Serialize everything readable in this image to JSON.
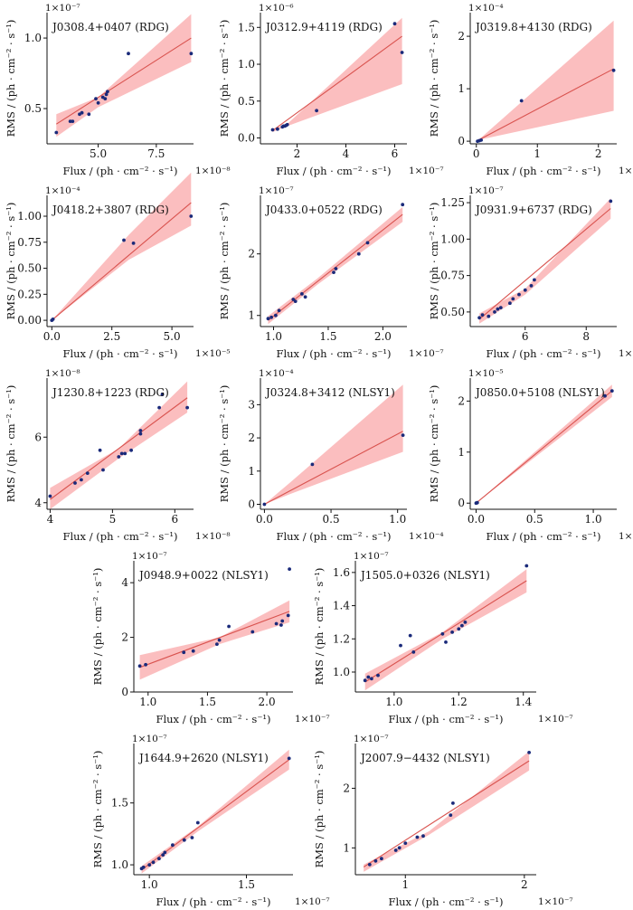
{
  "figure": {
    "y_axis_label": "RMS / (ph · cm⁻² · s⁻¹)",
    "x_axis_label": "Flux / (ph · cm⁻² · s⁻¹)"
  },
  "colors": {
    "points": "#1a2a7a",
    "fit_line": "#d9534f",
    "confidence_band": "#f9a8aa"
  },
  "chart_data": [
    {
      "type": "scatter",
      "title": "J0308.4+0407 (RDG)",
      "x_exponent_label": "1×10⁻⁸",
      "y_exponent_label": "1×10⁻⁷",
      "xlim": [
        2.8,
        9.1
      ],
      "ylim": [
        0.25,
        1.18
      ],
      "xticks": [
        5,
        7.5
      ],
      "xtick_labels": [
        "5.0",
        "7.5"
      ],
      "yticks": [
        0.5,
        1.0
      ],
      "ytick_labels": [
        "0.5",
        "1.0"
      ],
      "x": [
        3.2,
        3.8,
        3.9,
        4.2,
        4.3,
        4.6,
        4.9,
        5.0,
        5.2,
        5.3,
        5.35,
        5.4,
        6.3,
        9.0
      ],
      "y": [
        0.33,
        0.41,
        0.41,
        0.46,
        0.47,
        0.46,
        0.57,
        0.54,
        0.58,
        0.57,
        0.6,
        0.62,
        0.89,
        0.89
      ],
      "fit_line": {
        "x": [
          3.2,
          9.0
        ],
        "y": [
          0.39,
          1.0
        ]
      },
      "band": {
        "x": [
          3.2,
          5.0,
          9.0
        ],
        "upper": [
          0.46,
          0.58,
          1.17
        ],
        "lower": [
          0.3,
          0.51,
          0.83
        ]
      }
    },
    {
      "type": "scatter",
      "title": "J0312.9+4119 (RDG)",
      "x_exponent_label": "1×10⁻⁷",
      "y_exponent_label": "1×10⁻⁶",
      "xlim": [
        0.5,
        6.5
      ],
      "ylim": [
        -0.08,
        1.7
      ],
      "xticks": [
        2,
        4,
        6
      ],
      "xtick_labels": [
        "2",
        "4",
        "6"
      ],
      "yticks": [
        0,
        0.5,
        1.0,
        1.5
      ],
      "ytick_labels": [
        "0.0",
        "0.5",
        "1.0",
        "1.5"
      ],
      "x": [
        1.0,
        1.2,
        1.4,
        1.45,
        1.5,
        1.55,
        1.6,
        2.8,
        6.0,
        6.3
      ],
      "y": [
        0.11,
        0.12,
        0.15,
        0.16,
        0.16,
        0.17,
        0.18,
        0.37,
        1.55,
        1.16
      ],
      "fit_line": {
        "x": [
          1.0,
          6.3
        ],
        "y": [
          0.1,
          1.38
        ]
      },
      "band": {
        "x": [
          1.0,
          1.6,
          6.3
        ],
        "upper": [
          0.12,
          0.19,
          1.63
        ],
        "lower": [
          0.08,
          0.16,
          0.73
        ]
      }
    },
    {
      "type": "scatter",
      "title": "J0319.8+4130 (RDG)",
      "x_exponent_label": "1×10⁻⁵",
      "y_exponent_label": "1×10⁻⁴",
      "xlim": [
        -0.1,
        2.3
      ],
      "ylim": [
        -0.05,
        2.45
      ],
      "xticks": [
        0,
        1,
        2
      ],
      "xtick_labels": [
        "0",
        "1",
        "2"
      ],
      "yticks": [
        0,
        1,
        2
      ],
      "ytick_labels": [
        "0",
        "1",
        "2"
      ],
      "x": [
        0.02,
        0.05,
        0.08,
        0.74,
        2.25
      ],
      "y": [
        0.0,
        0.01,
        0.02,
        0.77,
        1.35
      ],
      "fit_line": {
        "x": [
          0.0,
          2.25
        ],
        "y": [
          0.0,
          1.38
        ]
      },
      "band": {
        "x": [
          0.0,
          0.1,
          2.25
        ],
        "upper": [
          0.0,
          0.09,
          2.3
        ],
        "lower": [
          0.0,
          0.04,
          0.58
        ]
      }
    },
    {
      "type": "scatter",
      "title": "J0418.2+3807 (RDG)",
      "x_exponent_label": "1×10⁻⁵",
      "y_exponent_label": "1×10⁻⁴",
      "xlim": [
        -0.2,
        5.9
      ],
      "ylim": [
        -0.06,
        1.2
      ],
      "xticks": [
        0,
        2.5,
        5
      ],
      "xtick_labels": [
        "0.0",
        "2.5",
        "5.0"
      ],
      "yticks": [
        0,
        0.25,
        0.5,
        0.75,
        1.0
      ],
      "ytick_labels": [
        "0.00",
        "0.25",
        "0.50",
        "0.75",
        "1.00"
      ],
      "x": [
        0.0,
        0.05,
        3.0,
        3.4,
        5.8
      ],
      "y": [
        0.0,
        0.01,
        0.77,
        0.74,
        1.0
      ],
      "fit_line": {
        "x": [
          0.0,
          5.8
        ],
        "y": [
          0.0,
          1.13
        ]
      },
      "band": {
        "x": [
          0.0,
          3.2,
          5.8
        ],
        "upper": [
          0.0,
          0.82,
          1.42
        ],
        "lower": [
          0.0,
          0.58,
          0.91
        ]
      }
    },
    {
      "type": "scatter",
      "title": "J0433.0+0522 (RDG)",
      "x_exponent_label": "1×10⁻⁷",
      "y_exponent_label": "1×10⁻⁷",
      "xlim": [
        0.88,
        2.22
      ],
      "ylim": [
        0.82,
        2.95
      ],
      "xticks": [
        1.0,
        1.5,
        2.0
      ],
      "xtick_labels": [
        "1.0",
        "1.5",
        "2.0"
      ],
      "yticks": [
        1,
        2
      ],
      "ytick_labels": [
        "1",
        "2"
      ],
      "x": [
        0.95,
        0.98,
        1.02,
        1.05,
        1.18,
        1.2,
        1.26,
        1.29,
        1.55,
        1.57,
        1.78,
        1.86,
        2.18
      ],
      "y": [
        0.95,
        0.97,
        1.0,
        1.08,
        1.26,
        1.23,
        1.35,
        1.3,
        1.7,
        1.76,
        2.0,
        2.18,
        2.8
      ],
      "fit_line": {
        "x": [
          0.95,
          2.18
        ],
        "y": [
          0.92,
          2.64
        ]
      },
      "band": {
        "x": [
          0.95,
          1.4,
          2.18
        ],
        "upper": [
          0.99,
          1.6,
          2.76
        ],
        "lower": [
          0.86,
          1.5,
          2.52
        ]
      }
    },
    {
      "type": "scatter",
      "title": "J0931.9+6737 (RDG)",
      "x_exponent_label": "1×10⁻⁸",
      "y_exponent_label": "1×10⁻⁷",
      "xlim": [
        4.2,
        9.0
      ],
      "ylim": [
        0.4,
        1.3
      ],
      "xticks": [
        6,
        8
      ],
      "xtick_labels": [
        "6",
        "8"
      ],
      "yticks": [
        0.5,
        0.75,
        1.0,
        1.25
      ],
      "ytick_labels": [
        "0.50",
        "0.75",
        "1.00",
        "1.25"
      ],
      "x": [
        4.5,
        4.6,
        4.8,
        5.0,
        5.1,
        5.2,
        5.5,
        5.6,
        5.8,
        6.0,
        6.2,
        6.3,
        8.8
      ],
      "y": [
        0.46,
        0.48,
        0.47,
        0.5,
        0.52,
        0.53,
        0.56,
        0.59,
        0.62,
        0.65,
        0.68,
        0.72,
        1.26
      ],
      "fit_line": {
        "x": [
          4.5,
          8.8
        ],
        "y": [
          0.45,
          1.21
        ]
      },
      "band": {
        "x": [
          4.5,
          6.0,
          8.8
        ],
        "upper": [
          0.49,
          0.66,
          1.28
        ],
        "lower": [
          0.42,
          0.62,
          1.14
        ]
      }
    },
    {
      "type": "scatter",
      "title": "J1230.8+1223 (RDG)",
      "x_exponent_label": "1×10⁻⁸",
      "y_exponent_label": "1×10⁻⁸",
      "xlim": [
        3.95,
        6.3
      ],
      "ylim": [
        3.8,
        7.8
      ],
      "xticks": [
        4,
        5,
        6
      ],
      "xtick_labels": [
        "4",
        "5",
        "6"
      ],
      "yticks": [
        4,
        6
      ],
      "ytick_labels": [
        "4",
        "6"
      ],
      "x": [
        4.0,
        4.4,
        4.5,
        4.6,
        4.8,
        4.85,
        5.1,
        5.15,
        5.2,
        5.3,
        5.45,
        5.45,
        5.75,
        5.8,
        6.2
      ],
      "y": [
        4.2,
        4.6,
        4.7,
        4.9,
        5.6,
        5.0,
        5.4,
        5.5,
        5.5,
        5.6,
        6.1,
        6.2,
        6.9,
        7.3,
        6.9
      ],
      "fit_line": {
        "x": [
          4.0,
          6.2
        ],
        "y": [
          4.1,
          7.2
        ]
      },
      "band": {
        "x": [
          4.0,
          5.1,
          6.2
        ],
        "upper": [
          4.45,
          5.65,
          7.7
        ],
        "lower": [
          3.8,
          5.35,
          6.75
        ]
      }
    },
    {
      "type": "scatter",
      "title": "J0324.8+3412 (NLSY1)",
      "x_exponent_label": "1×10⁻⁴",
      "y_exponent_label": "1×10⁻⁴",
      "xlim": [
        -0.03,
        1.07
      ],
      "ylim": [
        -0.15,
        3.8
      ],
      "xticks": [
        0,
        0.5,
        1.0
      ],
      "xtick_labels": [
        "0.0",
        "0.5",
        "1.0"
      ],
      "yticks": [
        0,
        1,
        2,
        3
      ],
      "ytick_labels": [
        "0",
        "1",
        "2",
        "3"
      ],
      "x": [
        0.0,
        0.36,
        1.04
      ],
      "y": [
        0.0,
        1.2,
        2.08
      ],
      "fit_line": {
        "x": [
          0.0,
          1.04
        ],
        "y": [
          0.0,
          2.2
        ]
      },
      "band": {
        "x": [
          0.0,
          0.2,
          1.04
        ],
        "upper": [
          0.0,
          0.68,
          3.6
        ],
        "lower": [
          0.0,
          0.32,
          1.58
        ]
      }
    },
    {
      "type": "scatter",
      "title": "J0850.0+5108 (NLSY1)",
      "x_exponent_label": "1×10⁻⁵",
      "y_exponent_label": "1×10⁻⁵",
      "xlim": [
        -0.05,
        1.2
      ],
      "ylim": [
        -0.12,
        2.45
      ],
      "xticks": [
        0,
        0.5,
        1.0
      ],
      "xtick_labels": [
        "0.0",
        "0.5",
        "1.0"
      ],
      "yticks": [
        0,
        1,
        2
      ],
      "ytick_labels": [
        "0",
        "1",
        "2"
      ],
      "x": [
        0.0,
        0.01,
        1.1,
        1.16
      ],
      "y": [
        0.0,
        0.01,
        2.1,
        2.2
      ],
      "fit_line": {
        "x": [
          0.0,
          1.16
        ],
        "y": [
          0.0,
          2.2
        ]
      },
      "band": {
        "x": [
          0.0,
          1.16
        ],
        "upper": [
          0.0,
          2.32
        ],
        "lower": [
          0.0,
          2.08
        ]
      }
    },
    {
      "type": "scatter",
      "title": "J0948.9+0022 (NLSY1)",
      "x_exponent_label": "1×10⁻⁷",
      "y_exponent_label": "1×10⁻⁷",
      "xlim": [
        0.88,
        2.22
      ],
      "ylim": [
        0.0,
        4.8
      ],
      "xticks": [
        1.0,
        1.5,
        2.0
      ],
      "xtick_labels": [
        "1.0",
        "1.5",
        "2.0"
      ],
      "yticks": [
        0,
        2,
        4
      ],
      "ytick_labels": [
        "0",
        "2",
        "4"
      ],
      "x": [
        0.93,
        0.98,
        1.3,
        1.38,
        1.58,
        1.6,
        1.68,
        1.88,
        2.08,
        2.12,
        2.13,
        2.18,
        2.19
      ],
      "y": [
        0.95,
        1.0,
        1.45,
        1.5,
        1.75,
        1.9,
        2.4,
        2.2,
        2.5,
        2.45,
        2.6,
        2.8,
        4.5
      ],
      "fit_line": {
        "x": [
          0.93,
          2.19
        ],
        "y": [
          0.9,
          2.95
        ]
      },
      "band": {
        "x": [
          0.93,
          1.6,
          2.19
        ],
        "upper": [
          1.35,
          2.0,
          3.35
        ],
        "lower": [
          0.45,
          1.75,
          2.55
        ]
      }
    },
    {
      "type": "scatter",
      "title": "J1505.0+0326 (NLSY1)",
      "x_exponent_label": "1×10⁻⁷",
      "y_exponent_label": "1×10⁻⁷",
      "xlim": [
        0.88,
        1.44
      ],
      "ylim": [
        0.88,
        1.67
      ],
      "xticks": [
        1.0,
        1.2,
        1.4
      ],
      "xtick_labels": [
        "1.0",
        "1.2",
        "1.4"
      ],
      "yticks": [
        1.0,
        1.2,
        1.4,
        1.6
      ],
      "ytick_labels": [
        "1.0",
        "1.2",
        "1.4",
        "1.6"
      ],
      "x": [
        0.91,
        0.92,
        0.93,
        0.95,
        1.02,
        1.05,
        1.06,
        1.15,
        1.16,
        1.18,
        1.2,
        1.21,
        1.22,
        1.41
      ],
      "y": [
        0.95,
        0.97,
        0.96,
        0.98,
        1.16,
        1.22,
        1.12,
        1.23,
        1.18,
        1.24,
        1.26,
        1.28,
        1.3,
        1.64
      ],
      "fit_line": {
        "x": [
          0.91,
          1.41
        ],
        "y": [
          0.94,
          1.55
        ]
      },
      "band": {
        "x": [
          0.91,
          1.15,
          1.41
        ],
        "upper": [
          0.99,
          1.24,
          1.62
        ],
        "lower": [
          0.89,
          1.2,
          1.48
        ]
      }
    },
    {
      "type": "scatter",
      "title": "J1644.9+2620 (NLSY1)",
      "x_exponent_label": "1×10⁻⁷",
      "y_exponent_label": "1×10⁻⁷",
      "xlim": [
        0.92,
        1.74
      ],
      "ylim": [
        0.92,
        1.98
      ],
      "xticks": [
        1.0,
        1.5
      ],
      "xtick_labels": [
        "1.0",
        "1.5"
      ],
      "yticks": [
        1.0,
        1.5
      ],
      "ytick_labels": [
        "1.0",
        "1.5"
      ],
      "x": [
        0.96,
        0.97,
        1.0,
        1.02,
        1.05,
        1.07,
        1.08,
        1.12,
        1.18,
        1.22,
        1.25,
        1.72
      ],
      "y": [
        0.97,
        0.98,
        1.0,
        1.02,
        1.05,
        1.08,
        1.1,
        1.16,
        1.2,
        1.22,
        1.34,
        1.86
      ],
      "fit_line": {
        "x": [
          0.96,
          1.72
        ],
        "y": [
          0.96,
          1.85
        ]
      },
      "band": {
        "x": [
          0.96,
          1.25,
          1.72
        ],
        "upper": [
          0.99,
          1.31,
          1.93
        ],
        "lower": [
          0.93,
          1.27,
          1.77
        ]
      }
    },
    {
      "type": "scatter",
      "title": "J2007.9−4432 (NLSY1)",
      "x_exponent_label": "1×10⁻⁷",
      "y_exponent_label": "1×10⁻⁷",
      "xlim": [
        0.58,
        2.1
      ],
      "ylim": [
        0.55,
        2.75
      ],
      "xticks": [
        1,
        2
      ],
      "xtick_labels": [
        "1",
        "2"
      ],
      "yticks": [
        1,
        2
      ],
      "ytick_labels": [
        "1",
        "2"
      ],
      "x": [
        0.7,
        0.75,
        0.8,
        0.92,
        0.95,
        1.0,
        1.1,
        1.15,
        1.38,
        1.4,
        2.04
      ],
      "y": [
        0.72,
        0.78,
        0.82,
        0.96,
        1.0,
        1.08,
        1.18,
        1.2,
        1.55,
        1.75,
        2.6
      ],
      "fit_line": {
        "x": [
          0.65,
          2.04
        ],
        "y": [
          0.68,
          2.46
        ]
      },
      "band": {
        "x": [
          0.65,
          1.2,
          2.04
        ],
        "upper": [
          0.72,
          1.28,
          2.62
        ],
        "lower": [
          0.6,
          1.22,
          2.3
        ]
      }
    }
  ]
}
